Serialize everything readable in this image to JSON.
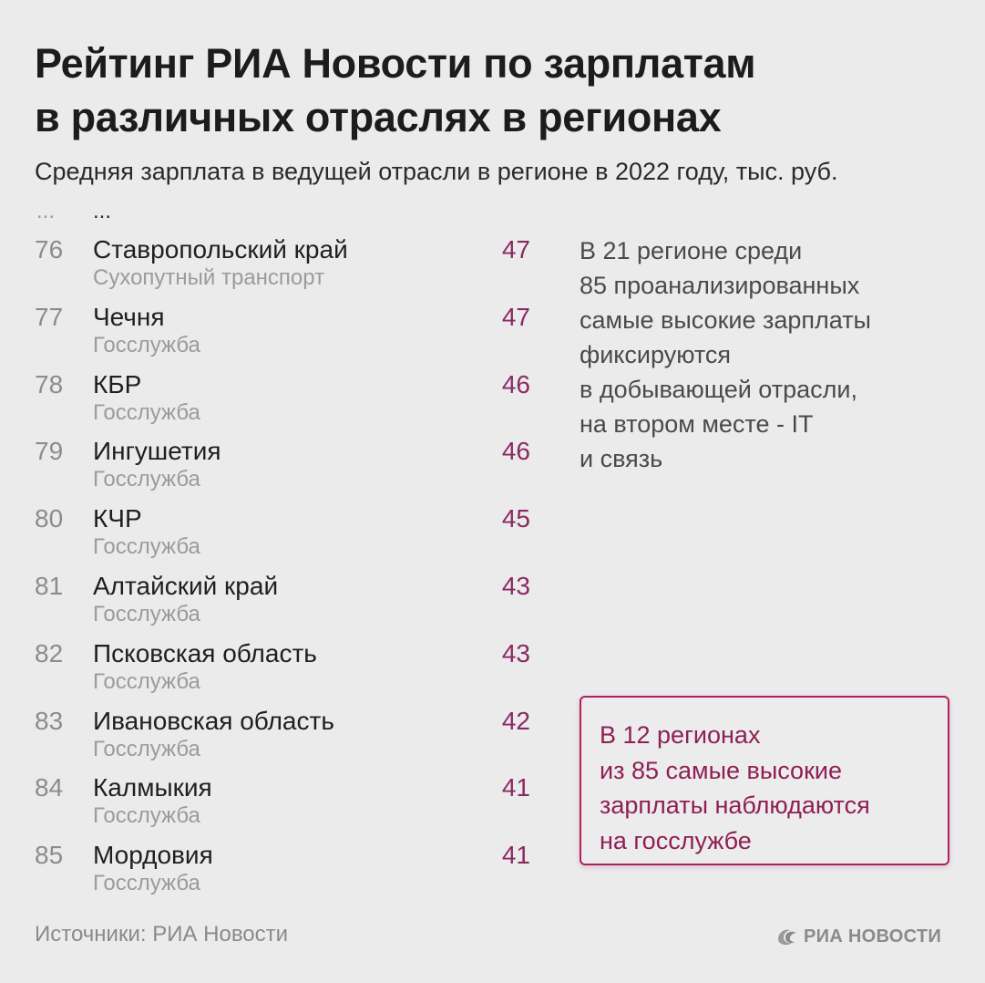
{
  "title_line1": "Рейтинг РИА Новости по зарплатам",
  "title_line2": "в различных отраслях в регионах",
  "subtitle": "Средняя зарплата в ведущей отрасли в регионе в 2022 году, тыс. руб.",
  "ellipsis_rank": "...",
  "ellipsis_name": "...",
  "note_lines": [
    "В 21 регионе среди",
    "85 проанализированных",
    "самые высокие зарплаты",
    "фиксируются",
    "в добывающей отрасли,",
    "на втором месте - IT",
    "и связь"
  ],
  "callout_lines": [
    "В 12 регионах",
    "из 85 самые высокие",
    "зарплаты наблюдаются",
    "на госслужбе"
  ],
  "source": "Источники: РИА Новости",
  "logo_text": "РИА НОВОСТИ",
  "colors": {
    "accent": "#8a2a63",
    "callout_border": "#b2215f",
    "background": "#ebebeb"
  },
  "chart_data": {
    "type": "table",
    "title": "Рейтинг РИА Новости по зарплатам в различных отраслях в регионах",
    "subtitle": "Средняя зарплата в ведущей отрасли в регионе в 2022 году, тыс. руб.",
    "rows": [
      {
        "rank": "76",
        "region": "Ставропольский край",
        "industry": "Сухопутный транспорт",
        "value": "47"
      },
      {
        "rank": "77",
        "region": "Чечня",
        "industry": "Госслужба",
        "value": "47"
      },
      {
        "rank": "78",
        "region": "КБР",
        "industry": "Госслужба",
        "value": "46"
      },
      {
        "rank": "79",
        "region": "Ингушетия",
        "industry": "Госслужба",
        "value": "46"
      },
      {
        "rank": "80",
        "region": "КЧР",
        "industry": "Госслужба",
        "value": "45"
      },
      {
        "rank": "81",
        "region": "Алтайский край",
        "industry": "Госслужба",
        "value": "43"
      },
      {
        "rank": "82",
        "region": "Псковская область",
        "industry": "Госслужба",
        "value": "43"
      },
      {
        "rank": "83",
        "region": "Ивановская область",
        "industry": "Госслужба",
        "value": "42"
      },
      {
        "rank": "84",
        "region": "Калмыкия",
        "industry": "Госслужба",
        "value": "41"
      },
      {
        "rank": "85",
        "region": "Мордовия",
        "industry": "Госслужба",
        "value": "41"
      }
    ]
  }
}
